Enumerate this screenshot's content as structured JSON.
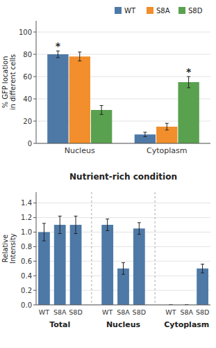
{
  "chart_data": [
    {
      "type": "bar",
      "categories": [
        "Nucleus",
        "Cytoplasm"
      ],
      "series": [
        {
          "name": "WT",
          "values": [
            80,
            8
          ],
          "errors": [
            3,
            2
          ]
        },
        {
          "name": "S8A",
          "values": [
            78,
            15
          ],
          "errors": [
            4,
            3
          ]
        },
        {
          "name": "S8D",
          "values": [
            30,
            55
          ],
          "errors": [
            4,
            5
          ]
        }
      ],
      "ylabel": "% GFP location\nin different cells",
      "ylim": [
        0,
        110
      ],
      "yticks": [
        0,
        20,
        40,
        60,
        80,
        100
      ],
      "legend": "upper right",
      "annotations": [
        {
          "text": "*",
          "series": 0,
          "category": 0
        },
        {
          "text": "*",
          "series": 2,
          "category": 1
        }
      ]
    },
    {
      "type": "bar",
      "title": "Nutrient-rich condition",
      "categories": [
        "WT",
        "S8A",
        "S8D",
        "WT",
        "S8A",
        "S8D",
        "WT",
        "S8A",
        "S8D"
      ],
      "groups": [
        "Total",
        "Nucleus",
        "Cytoplasm"
      ],
      "values": [
        1.0,
        1.1,
        1.1,
        1.1,
        0.5,
        1.05,
        0.0,
        0.0,
        0.5
      ],
      "errors": [
        0.12,
        0.12,
        0.12,
        0.08,
        0.08,
        0.08,
        0.0,
        0.0,
        0.06
      ],
      "ylabel": "Relative\nIntensity",
      "ylim": [
        0,
        1.55
      ],
      "yticks": [
        {
          "value": 0.0,
          "label": "0.0"
        },
        0.2,
        0.4,
        0.6,
        0.8,
        {
          "value": 1.0,
          "label": "1.0"
        },
        1.2,
        1.4
      ]
    }
  ]
}
